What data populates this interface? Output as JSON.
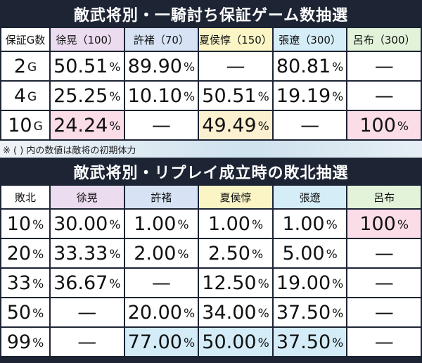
{
  "table1": {
    "title": "敵武将別・一騎討ち保証ゲーム数抽選",
    "header": [
      "保証G数",
      "徐晃（100）",
      "許褚（70）",
      "夏侯惇（150）",
      "張遼（300）",
      "呂布（300）"
    ],
    "rows": [
      [
        "2G",
        "50.51%",
        "89.90%",
        "—",
        "80.81%",
        "—"
      ],
      [
        "4G",
        "25.25%",
        "10.10%",
        "50.51%",
        "19.19%",
        "—"
      ],
      [
        "10G",
        "24.24%",
        "—",
        "49.49%",
        "—",
        "100%"
      ]
    ]
  },
  "note": "※ ( ) 内の数値は敵将の初期体力",
  "table2": {
    "title": "敵武将別・リプレイ成立時の敗北抽選",
    "header": [
      "敗北",
      "徐晃",
      "許褚",
      "夏侯惇",
      "張遼",
      "呂布"
    ],
    "rows": [
      [
        "10%",
        "30.00%",
        "1.00%",
        "1.00%",
        "1.00%",
        "100%"
      ],
      [
        "20%",
        "33.33%",
        "2.00%",
        "2.50%",
        "5.00%",
        "—"
      ],
      [
        "33%",
        "36.67%",
        "—",
        "12.50%",
        "19.00%",
        "—"
      ],
      [
        "50%",
        "—",
        "20.00%",
        "34.00%",
        "37.50%",
        "—"
      ],
      [
        "99%",
        "—",
        "77.00%",
        "50.00%",
        "37.50%",
        "—"
      ]
    ]
  }
}
